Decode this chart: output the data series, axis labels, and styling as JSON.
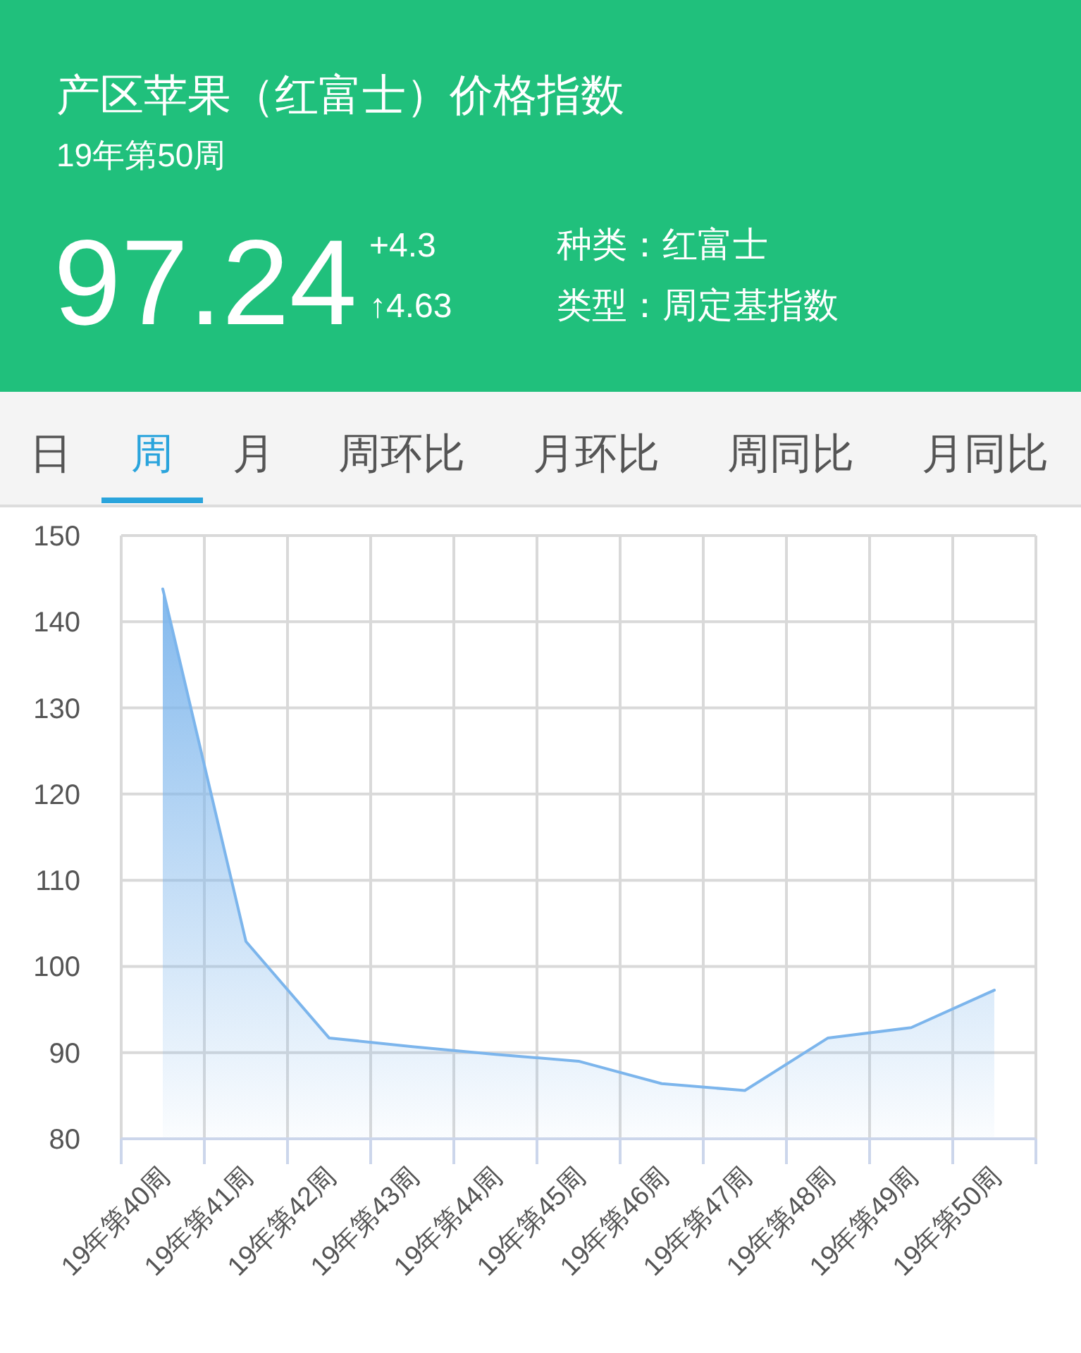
{
  "chart_data": {
    "type": "area",
    "title": "产区苹果（红富士）价格指数",
    "subtitle": "19年第50周",
    "annotations": [
      "97.24",
      "+4.3",
      "↑4.63",
      "种类：红富士",
      "类型：周定基指数",
      "日",
      "周",
      "月",
      "周环比",
      "月环比",
      "周同比",
      "月同比"
    ],
    "categories": [
      "19年第40周",
      "19年第41周",
      "19年第42周",
      "19年第43周",
      "19年第44周",
      "19年第45周",
      "19年第46周",
      "19年第47周",
      "19年第48周",
      "19年第49周",
      "19年第50周"
    ],
    "series": [
      {
        "color": "#7cb5ec",
        "values": [
          143.8,
          102.9,
          91.7,
          90.7,
          89.8,
          89.0,
          86.4,
          85.6,
          91.7,
          92.9,
          97.24
        ]
      }
    ],
    "ylim": [
      80,
      150
    ],
    "yticks": [
      80,
      90,
      100,
      110,
      120,
      130,
      140,
      150
    ],
    "grid": true
  }
}
